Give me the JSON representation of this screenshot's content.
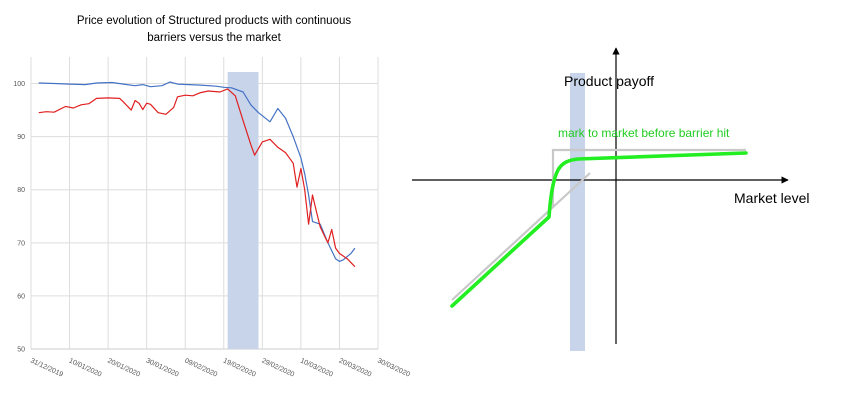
{
  "chart_data": [
    {
      "type": "line",
      "title_lines": [
        "Price evolution of Structured products with continuous",
        "barriers versus the market"
      ],
      "xlabel": "",
      "ylabel": "",
      "ylim": [
        50,
        105
      ],
      "yticks": [
        "50",
        "60",
        "70",
        "80",
        "90",
        "100"
      ],
      "xticks": [
        "31/12/2019",
        "10/01/2020",
        "20/01/2020",
        "30/01/2020",
        "09/02/2020",
        "19/02/2020",
        "29/02/2020",
        "10/03/2020",
        "20/03/2020",
        "30/03/2020"
      ],
      "xlim": [
        "2019-12-31",
        "2020-03-30"
      ],
      "grid": true,
      "highlight": {
        "from": "2020-02-20",
        "to": "2020-02-28",
        "color": "#c8d4ea"
      },
      "series": [
        {
          "color": "#4472c4",
          "points": [
            [
              "2020-01-02",
              100.1
            ],
            [
              "2020-01-06",
              100.0
            ],
            [
              "2020-01-10",
              99.9
            ],
            [
              "2020-01-14",
              99.8
            ],
            [
              "2020-01-17",
              100.1
            ],
            [
              "2020-01-21",
              100.2
            ],
            [
              "2020-01-24",
              99.9
            ],
            [
              "2020-01-27",
              99.6
            ],
            [
              "2020-01-29",
              99.8
            ],
            [
              "2020-01-31",
              99.4
            ],
            [
              "2020-02-03",
              99.6
            ],
            [
              "2020-02-05",
              100.3
            ],
            [
              "2020-02-07",
              99.9
            ],
            [
              "2020-02-10",
              99.8
            ],
            [
              "2020-02-13",
              99.7
            ],
            [
              "2020-02-17",
              99.5
            ],
            [
              "2020-02-19",
              99.3
            ],
            [
              "2020-02-21",
              99.2
            ],
            [
              "2020-02-24",
              98.4
            ],
            [
              "2020-02-26",
              96.0
            ],
            [
              "2020-02-28",
              94.5
            ],
            [
              "2020-03-02",
              92.8
            ],
            [
              "2020-03-04",
              95.3
            ],
            [
              "2020-03-06",
              93.5
            ],
            [
              "2020-03-08",
              90.0
            ],
            [
              "2020-03-10",
              86.0
            ],
            [
              "2020-03-11",
              83.0
            ],
            [
              "2020-03-12",
              79.0
            ],
            [
              "2020-03-13",
              74.0
            ],
            [
              "2020-03-15",
              73.5
            ],
            [
              "2020-03-17",
              70.0
            ],
            [
              "2020-03-19",
              67.0
            ],
            [
              "2020-03-20",
              66.5
            ],
            [
              "2020-03-21",
              66.8
            ],
            [
              "2020-03-23",
              68.0
            ],
            [
              "2020-03-24",
              69.0
            ]
          ]
        },
        {
          "color": "#e02020",
          "points": [
            [
              "2020-01-02",
              94.5
            ],
            [
              "2020-01-04",
              94.7
            ],
            [
              "2020-01-06",
              94.6
            ],
            [
              "2020-01-09",
              95.7
            ],
            [
              "2020-01-11",
              95.4
            ],
            [
              "2020-01-13",
              96.0
            ],
            [
              "2020-01-15",
              96.2
            ],
            [
              "2020-01-17",
              97.2
            ],
            [
              "2020-01-20",
              97.3
            ],
            [
              "2020-01-23",
              97.2
            ],
            [
              "2020-01-24",
              96.5
            ],
            [
              "2020-01-26",
              95.0
            ],
            [
              "2020-01-27",
              96.8
            ],
            [
              "2020-01-28",
              96.3
            ],
            [
              "2020-01-29",
              95.1
            ],
            [
              "2020-01-30",
              96.3
            ],
            [
              "2020-01-31",
              96.1
            ],
            [
              "2020-02-02",
              94.5
            ],
            [
              "2020-02-04",
              94.2
            ],
            [
              "2020-02-06",
              95.5
            ],
            [
              "2020-02-07",
              97.5
            ],
            [
              "2020-02-09",
              97.8
            ],
            [
              "2020-02-11",
              97.7
            ],
            [
              "2020-02-13",
              98.3
            ],
            [
              "2020-02-15",
              98.6
            ],
            [
              "2020-02-18",
              98.4
            ],
            [
              "2020-02-20",
              99.0
            ],
            [
              "2020-02-22",
              97.7
            ],
            [
              "2020-02-24",
              93.0
            ],
            [
              "2020-02-26",
              88.5
            ],
            [
              "2020-02-27",
              86.5
            ],
            [
              "2020-02-29",
              89.0
            ],
            [
              "2020-03-02",
              89.5
            ],
            [
              "2020-03-04",
              88.0
            ],
            [
              "2020-03-06",
              87.0
            ],
            [
              "2020-03-08",
              85.0
            ],
            [
              "2020-03-09",
              80.5
            ],
            [
              "2020-03-10",
              84.0
            ],
            [
              "2020-03-11",
              80.0
            ],
            [
              "2020-03-12",
              73.5
            ],
            [
              "2020-03-13",
              79.0
            ],
            [
              "2020-03-14",
              76.0
            ],
            [
              "2020-03-15",
              73.0
            ],
            [
              "2020-03-16",
              71.5
            ],
            [
              "2020-03-17",
              70.0
            ],
            [
              "2020-03-18",
              72.5
            ],
            [
              "2020-03-19",
              69.0
            ],
            [
              "2020-03-20",
              68.0
            ],
            [
              "2020-03-22",
              67.0
            ],
            [
              "2020-03-24",
              65.5
            ]
          ]
        }
      ]
    },
    {
      "type": "line",
      "title": "",
      "xlabel": "Market level",
      "ylabel": "Product payoff",
      "annotation": "mark to market before barrier hit",
      "series": [
        {
          "role": "payoff profile",
          "color": "#c8c8c8"
        },
        {
          "role": "mark to market",
          "color": "#22ee22"
        }
      ],
      "barrier_band_color": "#c8d4ea"
    }
  ]
}
